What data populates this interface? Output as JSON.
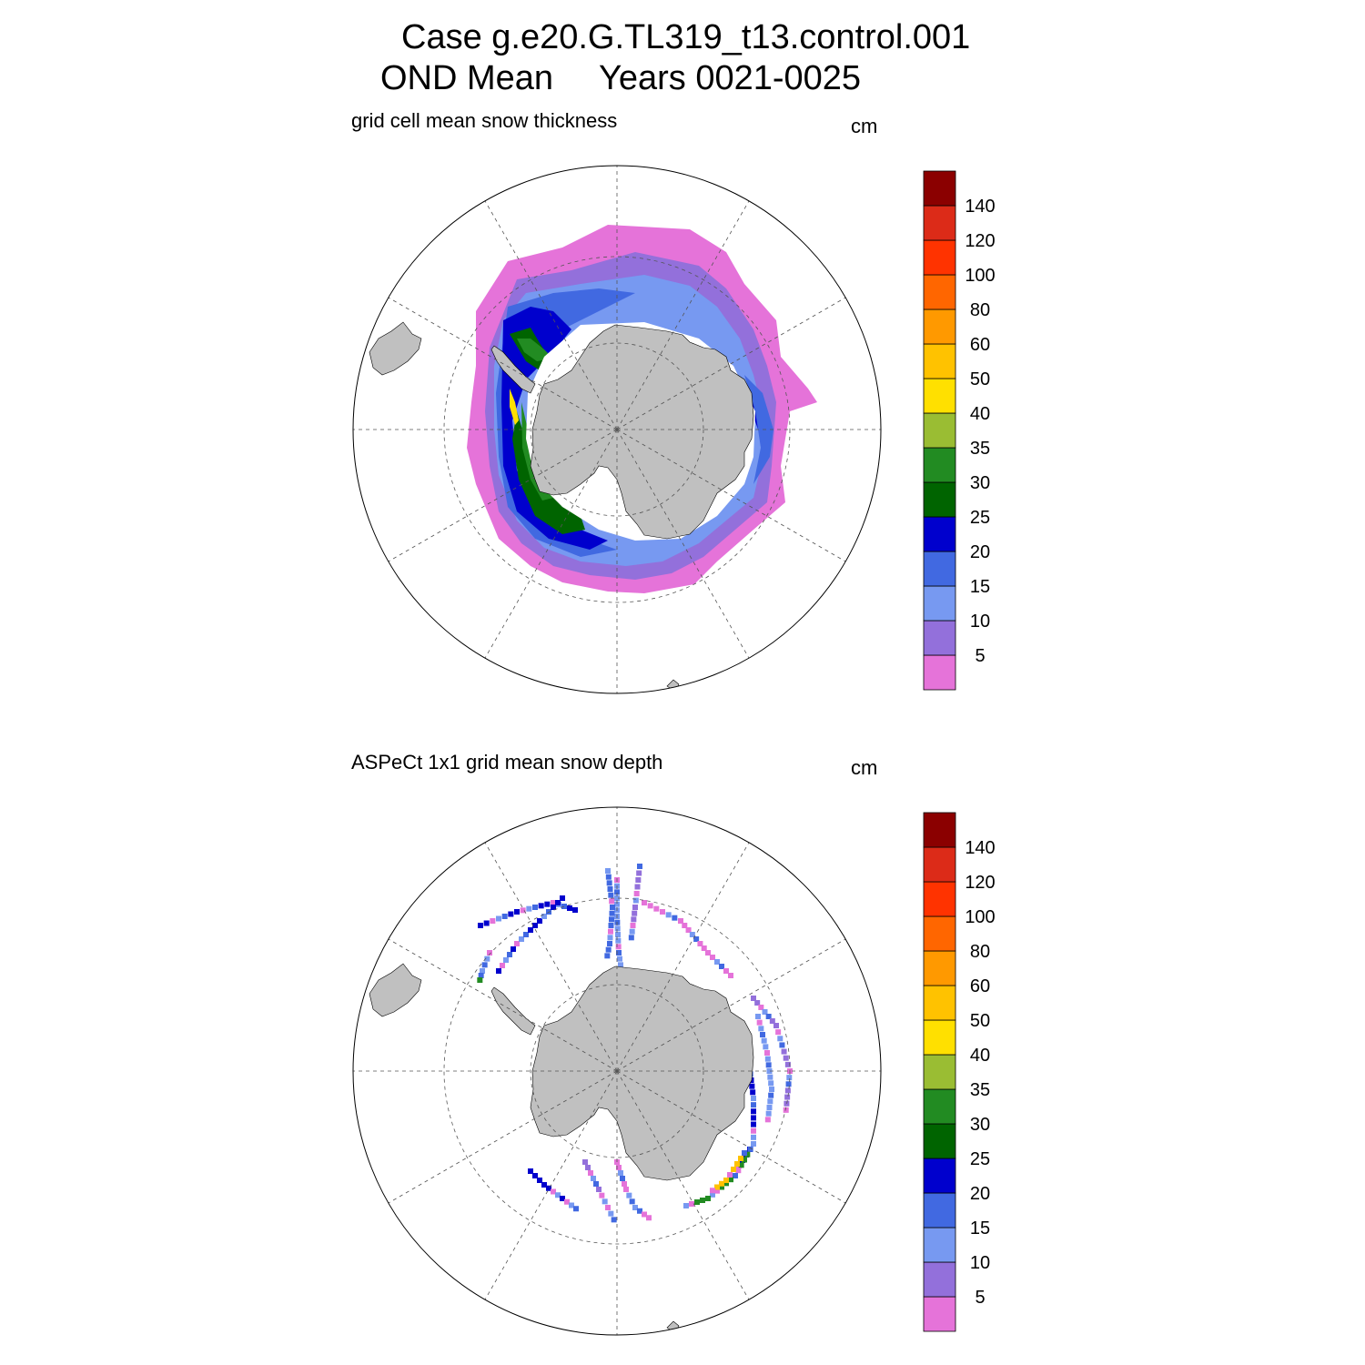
{
  "title": {
    "line1": "Case g.e20.G.TL319_t13.control.001",
    "line2_season": "OND Mean",
    "line2_years": "Years 0021-0025"
  },
  "colorbar": {
    "colors": [
      "#e573d9",
      "#9370db",
      "#7799f1",
      "#4169e1",
      "#0000cd",
      "#006400",
      "#228b22",
      "#9abd33",
      "#ffe000",
      "#ffc200",
      "#ff9900",
      "#ff6600",
      "#ff3300",
      "#dc2b18",
      "#8b0000"
    ],
    "labels": [
      "5",
      "10",
      "15",
      "20",
      "25",
      "30",
      "35",
      "40",
      "50",
      "60",
      "80",
      "100",
      "120",
      "140"
    ]
  },
  "panels": [
    {
      "id": "model",
      "subtitle": "grid cell mean snow thickness",
      "units": "cm",
      "field": "gridded model snow thickness (filled contours)"
    },
    {
      "id": "obs",
      "subtitle": "ASPeCt 1x1 grid mean snow depth",
      "units": "cm",
      "field": "ship-based observations along tracks (1x1 degree cells)"
    }
  ],
  "colors": {
    "land": "#c0c0c0",
    "background": "#ffffff"
  }
}
